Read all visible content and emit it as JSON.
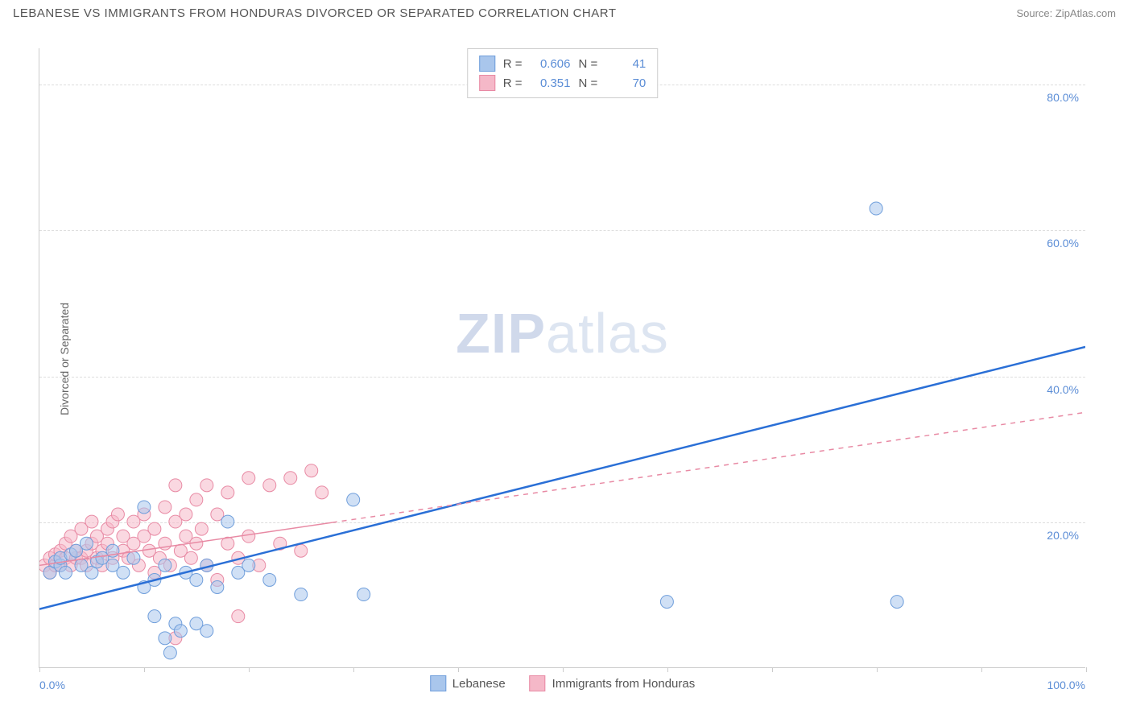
{
  "title": "LEBANESE VS IMMIGRANTS FROM HONDURAS DIVORCED OR SEPARATED CORRELATION CHART",
  "source": "Source: ZipAtlas.com",
  "ylabel": "Divorced or Separated",
  "watermark_bold": "ZIP",
  "watermark_light": "atlas",
  "chart": {
    "type": "scatter",
    "xlim": [
      0,
      100
    ],
    "ylim": [
      0,
      85
    ],
    "x_axis_labels": [
      {
        "pos": 0,
        "text": "0.0%"
      },
      {
        "pos": 100,
        "text": "100.0%"
      }
    ],
    "x_ticks": [
      0,
      10,
      20,
      30,
      40,
      50,
      60,
      70,
      80,
      90,
      100
    ],
    "y_gridlines": [
      20,
      40,
      60,
      80
    ],
    "y_tick_labels": [
      {
        "pos": 20,
        "text": "20.0%"
      },
      {
        "pos": 40,
        "text": "40.0%"
      },
      {
        "pos": 60,
        "text": "60.0%"
      },
      {
        "pos": 80,
        "text": "80.0%"
      }
    ],
    "background_color": "#ffffff",
    "grid_color": "#dddddd",
    "axis_color": "#cccccc",
    "marker_radius": 8,
    "marker_opacity": 0.55,
    "series": [
      {
        "name": "Lebanese",
        "fill": "#a9c6ec",
        "stroke": "#6f9edb",
        "trend_line_color": "#2a6fd6",
        "trend_line_width": 2.5,
        "trend_line_dash": "none",
        "trend": {
          "x1": 0,
          "y1": 8,
          "x2": 100,
          "y2": 44
        },
        "stats": {
          "R_label": "R =",
          "R": "0.606",
          "N_label": "N =",
          "N": "41"
        },
        "points": [
          [
            1,
            13
          ],
          [
            1.5,
            14.5
          ],
          [
            2,
            14
          ],
          [
            2,
            15
          ],
          [
            2.5,
            13
          ],
          [
            3,
            15.5
          ],
          [
            3.5,
            16
          ],
          [
            4,
            14
          ],
          [
            4.5,
            17
          ],
          [
            5,
            13
          ],
          [
            5.5,
            14.5
          ],
          [
            6,
            15
          ],
          [
            7,
            16
          ],
          [
            7,
            14
          ],
          [
            8,
            13
          ],
          [
            9,
            15
          ],
          [
            10,
            11
          ],
          [
            10,
            22
          ],
          [
            11,
            12
          ],
          [
            11,
            7
          ],
          [
            12,
            14
          ],
          [
            12,
            4
          ],
          [
            12.5,
            2
          ],
          [
            13,
            6
          ],
          [
            13.5,
            5
          ],
          [
            14,
            13
          ],
          [
            15,
            12
          ],
          [
            15,
            6
          ],
          [
            16,
            14
          ],
          [
            16,
            5
          ],
          [
            17,
            11
          ],
          [
            18,
            20
          ],
          [
            19,
            13
          ],
          [
            20,
            14
          ],
          [
            22,
            12
          ],
          [
            25,
            10
          ],
          [
            30,
            23
          ],
          [
            31,
            10
          ],
          [
            60,
            9
          ],
          [
            80,
            63
          ],
          [
            82,
            9
          ]
        ]
      },
      {
        "name": "Immigrants from Honduras",
        "fill": "#f5b8c8",
        "stroke": "#e88aa4",
        "trend_line_color": "#e88aa4",
        "trend_line_width": 1.5,
        "trend_line_dash": "solid_then_dash",
        "trend": {
          "x1": 0,
          "y1": 14,
          "x2": 100,
          "y2": 35,
          "solid_until_x": 28
        },
        "stats": {
          "R_label": "R =",
          "R": "0.351",
          "N_label": "N =",
          "N": "70"
        },
        "points": [
          [
            0.5,
            14
          ],
          [
            1,
            15
          ],
          [
            1,
            13
          ],
          [
            1.5,
            14
          ],
          [
            1.5,
            15.5
          ],
          [
            2,
            16
          ],
          [
            2,
            14
          ],
          [
            2.5,
            15
          ],
          [
            2.5,
            17
          ],
          [
            3,
            14
          ],
          [
            3,
            18
          ],
          [
            3.5,
            15
          ],
          [
            3.5,
            16
          ],
          [
            4,
            15
          ],
          [
            4,
            19
          ],
          [
            4.5,
            16
          ],
          [
            4.5,
            14
          ],
          [
            5,
            17
          ],
          [
            5,
            20
          ],
          [
            5.5,
            15
          ],
          [
            5.5,
            18
          ],
          [
            6,
            16
          ],
          [
            6,
            14
          ],
          [
            6.5,
            17
          ],
          [
            6.5,
            19
          ],
          [
            7,
            20
          ],
          [
            7,
            15
          ],
          [
            7.5,
            21
          ],
          [
            8,
            18
          ],
          [
            8,
            16
          ],
          [
            8.5,
            15
          ],
          [
            9,
            17
          ],
          [
            9,
            20
          ],
          [
            9.5,
            14
          ],
          [
            10,
            18
          ],
          [
            10,
            21
          ],
          [
            10.5,
            16
          ],
          [
            11,
            13
          ],
          [
            11,
            19
          ],
          [
            11.5,
            15
          ],
          [
            12,
            17
          ],
          [
            12,
            22
          ],
          [
            12.5,
            14
          ],
          [
            13,
            20
          ],
          [
            13,
            25
          ],
          [
            13.5,
            16
          ],
          [
            14,
            18
          ],
          [
            14,
            21
          ],
          [
            14.5,
            15
          ],
          [
            15,
            23
          ],
          [
            15,
            17
          ],
          [
            15.5,
            19
          ],
          [
            16,
            14
          ],
          [
            16,
            25
          ],
          [
            17,
            21
          ],
          [
            17,
            12
          ],
          [
            18,
            17
          ],
          [
            18,
            24
          ],
          [
            19,
            15
          ],
          [
            19,
            7
          ],
          [
            20,
            26
          ],
          [
            20,
            18
          ],
          [
            21,
            14
          ],
          [
            22,
            25
          ],
          [
            23,
            17
          ],
          [
            24,
            26
          ],
          [
            25,
            16
          ],
          [
            26,
            27
          ],
          [
            27,
            24
          ],
          [
            13,
            4
          ]
        ]
      }
    ]
  },
  "bottom_legend": [
    {
      "label": "Lebanese",
      "fill": "#a9c6ec",
      "stroke": "#6f9edb"
    },
    {
      "label": "Immigrants from Honduras",
      "fill": "#f5b8c8",
      "stroke": "#e88aa4"
    }
  ]
}
